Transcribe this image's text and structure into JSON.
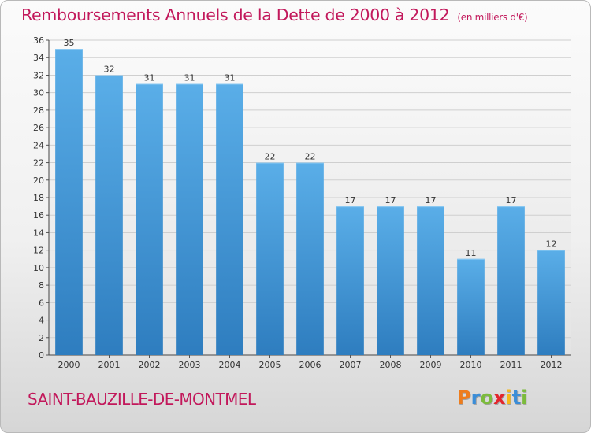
{
  "title": "Remboursements Annuels de la Dette de 2000 à 2012",
  "subtitle": "(en milliers d'€)",
  "location": "SAINT-BAUZILLE-DE-MONTMEL",
  "logo": {
    "letters": [
      "P",
      "r",
      "o",
      "x",
      "i",
      "t",
      "i"
    ],
    "colors": [
      "#ee7d1d",
      "#3a8dd8",
      "#7cbb3c",
      "#e3262d",
      "#f5b81a",
      "#3a8dd8",
      "#7cbb3c"
    ]
  },
  "colors": {
    "bar_top": "#5aaee8",
    "bar_bottom": "#2e7dbf",
    "accent": "#c2185b"
  },
  "chart_data": {
    "type": "bar",
    "categories": [
      "2000",
      "2001",
      "2002",
      "2003",
      "2004",
      "2005",
      "2006",
      "2007",
      "2008",
      "2009",
      "2010",
      "2011",
      "2012"
    ],
    "values": [
      35,
      32,
      31,
      31,
      31,
      22,
      22,
      17,
      17,
      17,
      11,
      17,
      12
    ],
    "title": "Remboursements Annuels de la Dette de 2000 à 2012",
    "xlabel": "",
    "ylabel": "",
    "ylim": [
      0,
      36
    ],
    "yticks": [
      0,
      2,
      4,
      6,
      8,
      10,
      12,
      14,
      16,
      18,
      20,
      22,
      24,
      26,
      28,
      30,
      32,
      34,
      36
    ],
    "grid": true,
    "legend": "none"
  }
}
